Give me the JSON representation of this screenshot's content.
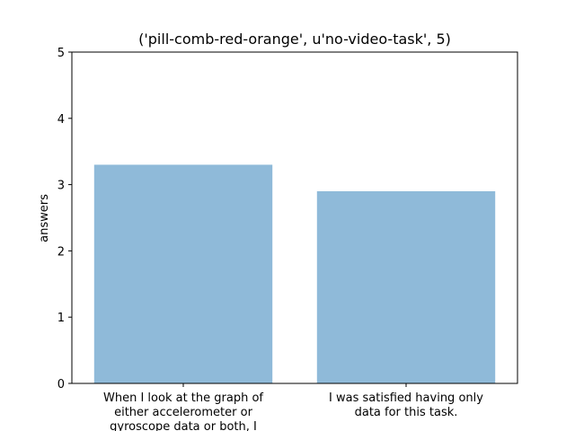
{
  "chart_data": {
    "type": "bar",
    "title": "('pill-comb-red-orange', u'no-video-task', 5)",
    "ylabel": "answers",
    "xlabel": "",
    "ylim": [
      0,
      5
    ],
    "yticks": [
      "0",
      "1",
      "2",
      "3",
      "4",
      "5"
    ],
    "categories": [
      [
        "When I look at the graph of",
        "either accelerometer or",
        "gyroscope data or both, I"
      ],
      [
        "I was satisfied having only",
        "data for this task."
      ]
    ],
    "values": [
      3.3,
      2.9
    ],
    "bar_color": "#8fbad9",
    "grid": false
  }
}
